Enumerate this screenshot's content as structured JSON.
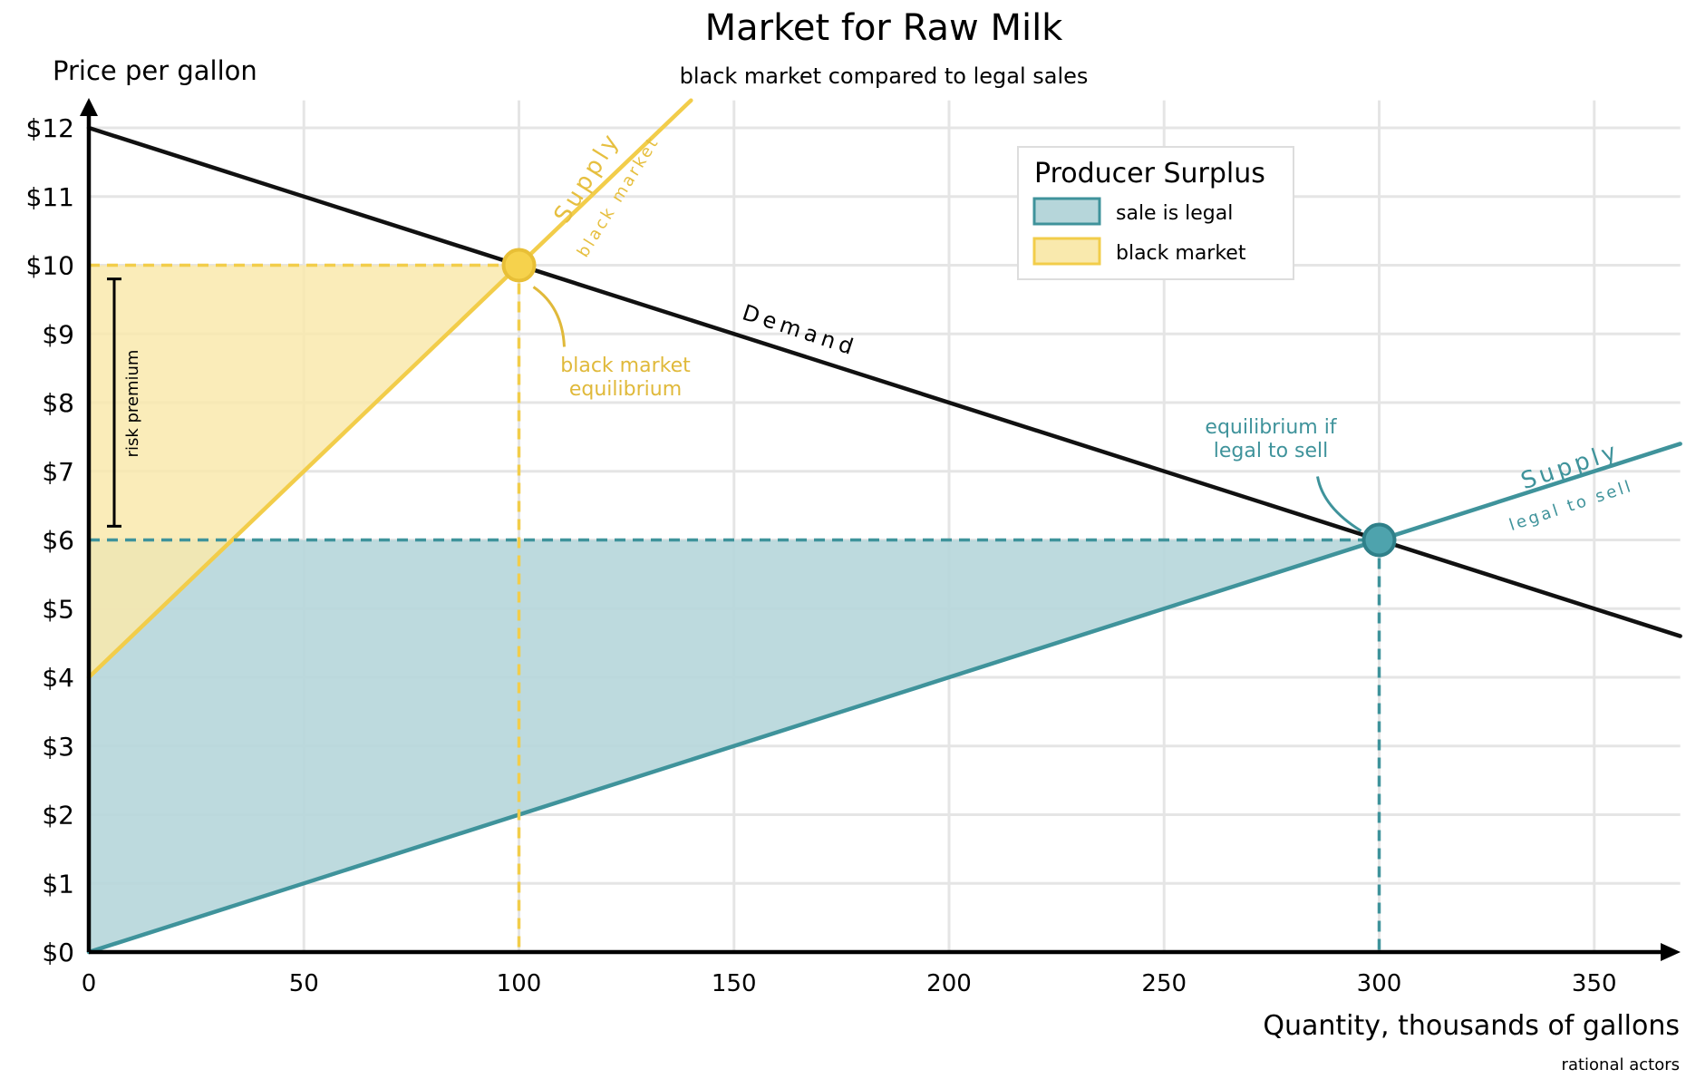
{
  "chart_data": {
    "type": "line",
    "title": "Market for Raw Milk",
    "subtitle": "black market compared to legal sales",
    "ylabel": "Price per gallon",
    "xlabel": "Quantity, thousands of gallons",
    "credit": "rational actors",
    "xlim": [
      0,
      370
    ],
    "ylim": [
      0,
      12.4
    ],
    "x_ticks": [
      0,
      50,
      100,
      150,
      200,
      250,
      300,
      350
    ],
    "x_tick_labels": [
      "0",
      "50",
      "100",
      "150",
      "200",
      "250",
      "300",
      "350"
    ],
    "y_ticks": [
      0,
      1,
      2,
      3,
      4,
      5,
      6,
      7,
      8,
      9,
      10,
      11,
      12
    ],
    "y_tick_labels": [
      "$0",
      "$1",
      "$2",
      "$3",
      "$4",
      "$5",
      "$6",
      "$7",
      "$8",
      "$9",
      "$10",
      "$11",
      "$12"
    ],
    "grid": true,
    "legend_position": "top-right",
    "legend_title": "Producer Surplus",
    "colors": {
      "demand": "#111111",
      "black_market": "#f2cd4a",
      "legal": "#3f939b",
      "black_market_fill": "#f9e9ad",
      "legal_fill": "#b6d6da",
      "grid": "#e5e5e5",
      "axis": "#000000"
    },
    "series": [
      {
        "key": "demand",
        "x": [
          0,
          370
        ],
        "y": [
          12,
          4.6
        ]
      },
      {
        "key": "supply_black",
        "x": [
          0,
          140
        ],
        "y": [
          4,
          12.4
        ]
      },
      {
        "key": "supply_legal",
        "x": [
          0,
          370
        ],
        "y": [
          0,
          7.4
        ]
      }
    ],
    "series_labels": {
      "demand": "Demand",
      "supply_black_top": "Supply",
      "supply_black_bottom": "black market",
      "supply_legal_top": "Supply",
      "supply_legal_bottom": "legal to sell"
    },
    "areas": [
      {
        "key": "black",
        "label": "black market",
        "polygon": [
          [
            0,
            4
          ],
          [
            0,
            10
          ],
          [
            100,
            10
          ]
        ]
      },
      {
        "key": "legal",
        "label": "sale is legal",
        "polygon": [
          [
            0,
            0
          ],
          [
            0,
            6
          ],
          [
            300,
            6
          ]
        ]
      }
    ],
    "points": [
      {
        "key": "black",
        "x": 100,
        "y": 10,
        "label": [
          "black market",
          "equilibrium"
        ]
      },
      {
        "key": "legal",
        "x": 300,
        "y": 6,
        "label": [
          "equilibrium if",
          "legal to sell"
        ]
      }
    ],
    "annotations": {
      "risk_premium": {
        "label": "risk premium",
        "y_from": 6.2,
        "y_to": 9.8
      }
    }
  }
}
